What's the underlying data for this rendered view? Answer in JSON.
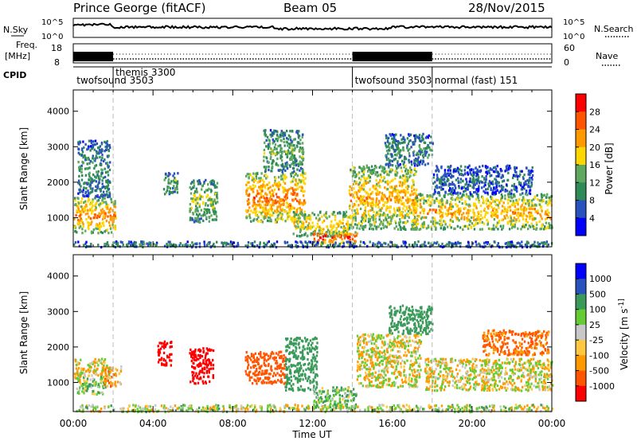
{
  "header": {
    "title": "Prince George (fitACF)",
    "beam": "Beam 05",
    "date": "28/Nov/2015"
  },
  "top_panels": {
    "nsky": {
      "label": "N.Sky",
      "ticks": [
        "10^5",
        "10^0"
      ],
      "right_label": "N.Search",
      "right_ticks": [
        "10^5",
        "10^0"
      ]
    },
    "freq": {
      "label": "Freq.",
      "unit": "[MHz]",
      "ticks": [
        "18",
        "8"
      ],
      "right_label": "Nave",
      "right_ticks": [
        "60",
        "0"
      ]
    },
    "cpid": {
      "label": "CPID",
      "modes": [
        {
          "text": "twofsound 3503",
          "start_h": 0.05
        },
        {
          "text": "themis 3300",
          "start_h": 2.0
        },
        {
          "text": "twofsound 3503",
          "start_h": 14.0
        },
        {
          "text": "normal (fast) 151",
          "start_h": 18.0
        }
      ]
    }
  },
  "chart_data": [
    {
      "type": "heatmap",
      "name": "power",
      "xlabel": "",
      "ylabel": "Slant Range [km]",
      "xlim": [
        0,
        24
      ],
      "ylim": [
        180,
        4600
      ],
      "yticks": [
        1000,
        2000,
        3000,
        4000
      ],
      "colorbar": {
        "label": "Power [dB]",
        "ticks": [
          "28",
          "24",
          "20",
          "16",
          "12",
          "8",
          "4"
        ],
        "tick_values": [
          28,
          24,
          20,
          16,
          12,
          8,
          4
        ],
        "range": [
          0,
          32
        ],
        "colors": [
          "#0000ff",
          "#2a52be",
          "#2e8b57",
          "#5fa85f",
          "#ffd700",
          "#ff9900",
          "#ff5500",
          "#ff0000"
        ]
      },
      "regions": [
        {
          "t0": 0.0,
          "t1": 2.1,
          "r0": 600,
          "r1": 1600,
          "z": 24
        },
        {
          "t0": 0.2,
          "t1": 1.8,
          "r0": 1600,
          "r1": 3200,
          "z": 11
        },
        {
          "t0": 4.5,
          "t1": 5.2,
          "r0": 1700,
          "r1": 2300,
          "z": 14
        },
        {
          "t0": 5.8,
          "t1": 7.2,
          "r0": 900,
          "r1": 2100,
          "z": 16
        },
        {
          "t0": 8.6,
          "t1": 11.6,
          "r0": 900,
          "r1": 2300,
          "z": 25
        },
        {
          "t0": 9.5,
          "t1": 11.5,
          "r0": 2300,
          "r1": 3500,
          "z": 14
        },
        {
          "t0": 11.0,
          "t1": 13.8,
          "r0": 500,
          "r1": 1200,
          "z": 20
        },
        {
          "t0": 12.0,
          "t1": 14.2,
          "r0": 300,
          "r1": 650,
          "z": 30
        },
        {
          "t0": 13.8,
          "t1": 17.2,
          "r0": 700,
          "r1": 2500,
          "z": 22
        },
        {
          "t0": 15.6,
          "t1": 18.0,
          "r0": 2500,
          "r1": 3400,
          "z": 11
        },
        {
          "t0": 17.0,
          "t1": 24.0,
          "r0": 700,
          "r1": 1700,
          "z": 22
        },
        {
          "t0": 18.0,
          "t1": 23.0,
          "r0": 1700,
          "r1": 2500,
          "z": 8
        },
        {
          "t0": 0.0,
          "t1": 24.0,
          "r0": 200,
          "r1": 360,
          "z": 10
        }
      ]
    },
    {
      "type": "heatmap",
      "name": "velocity",
      "xlabel": "Time UT",
      "ylabel": "Slant Range [km]",
      "xlim": [
        0,
        24
      ],
      "ylim": [
        180,
        4600
      ],
      "yticks": [
        1000,
        2000,
        3000,
        4000
      ],
      "xticks": [
        "00:00",
        "04:00",
        "08:00",
        "12:00",
        "16:00",
        "20:00",
        "00:00"
      ],
      "xtick_values": [
        0,
        4,
        8,
        12,
        16,
        20,
        24
      ],
      "colorbar": {
        "label": "Velocity [m s^-1]",
        "ticks": [
          "1000",
          "500",
          "100",
          "25",
          "-25",
          "-100",
          "-500",
          "-1000"
        ],
        "tick_values": [
          1000,
          500,
          100,
          25,
          -25,
          -100,
          -500,
          -1000
        ],
        "range": [
          -1200,
          1200
        ],
        "colors": [
          "#ff0000",
          "#ff5500",
          "#ff9900",
          "#ffc840",
          "#c8c8c8",
          "#66cc33",
          "#3a9a5a",
          "#2a52be",
          "#0000ff"
        ]
      },
      "regions": [
        {
          "t0": 0.0,
          "t1": 0.5,
          "r0": 1100,
          "r1": 1700,
          "v": 0
        },
        {
          "t0": 0.1,
          "t1": 1.6,
          "r0": 700,
          "r1": 1200,
          "v": 60
        },
        {
          "t0": 1.5,
          "t1": 2.4,
          "r0": 900,
          "r1": 1500,
          "v": -60
        },
        {
          "t0": 0.5,
          "t1": 1.8,
          "r0": 1200,
          "r1": 1700,
          "v": 0
        },
        {
          "t0": 4.2,
          "t1": 4.9,
          "r0": 1500,
          "r1": 2200,
          "v": -800
        },
        {
          "t0": 5.8,
          "t1": 7.0,
          "r0": 1000,
          "r1": 2000,
          "v": -700
        },
        {
          "t0": 8.6,
          "t1": 10.6,
          "r0": 1000,
          "r1": 1900,
          "v": -300
        },
        {
          "t0": 10.6,
          "t1": 12.2,
          "r0": 800,
          "r1": 2300,
          "v": 300
        },
        {
          "t0": 12.0,
          "t1": 14.2,
          "r0": 300,
          "r1": 900,
          "v": 80
        },
        {
          "t0": 14.2,
          "t1": 17.4,
          "r0": 900,
          "r1": 2400,
          "v": 0
        },
        {
          "t0": 15.8,
          "t1": 18.0,
          "r0": 2400,
          "r1": 3200,
          "v": 200
        },
        {
          "t0": 17.6,
          "t1": 24.0,
          "r0": 800,
          "r1": 1700,
          "v": 0
        },
        {
          "t0": 20.5,
          "t1": 23.8,
          "r0": 1800,
          "r1": 2500,
          "v": -120
        },
        {
          "t0": 0.0,
          "t1": 24.0,
          "r0": 200,
          "r1": 400,
          "v": 30
        }
      ]
    }
  ]
}
